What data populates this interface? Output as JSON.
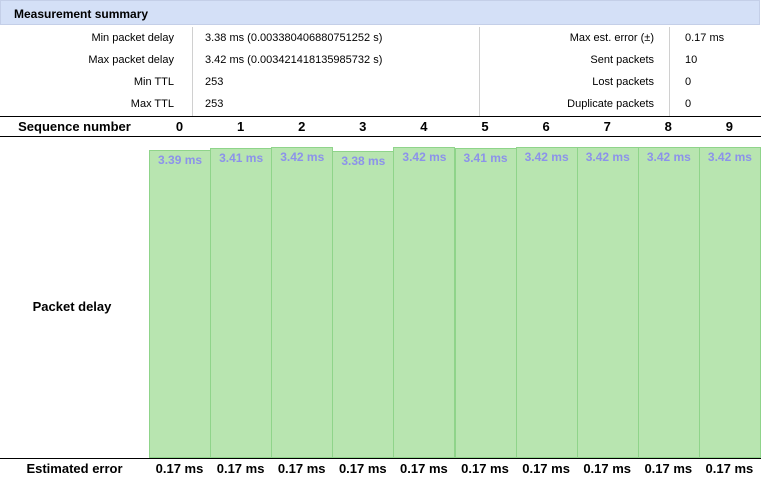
{
  "header": {
    "title": "Measurement summary"
  },
  "summary": {
    "left": [
      {
        "label": "Min packet delay",
        "value": "3.38 ms (0.003380406880751252 s)"
      },
      {
        "label": "Max packet delay",
        "value": "3.42 ms (0.003421418135985732 s)"
      },
      {
        "label": "Min TTL",
        "value": "253"
      },
      {
        "label": "Max TTL",
        "value": "253"
      }
    ],
    "right": [
      {
        "label": "Max est. error (±)",
        "value": "0.17 ms"
      },
      {
        "label": "Sent packets",
        "value": "10"
      },
      {
        "label": "Lost packets",
        "value": "0"
      },
      {
        "label": "Duplicate packets",
        "value": "0"
      }
    ]
  },
  "sequence": {
    "label": "Sequence number",
    "numbers": [
      "0",
      "1",
      "2",
      "3",
      "4",
      "5",
      "6",
      "7",
      "8",
      "9"
    ]
  },
  "chart_data": {
    "type": "bar",
    "title": "",
    "xlabel": "Sequence number",
    "ylabel": "Packet delay",
    "categories": [
      "0",
      "1",
      "2",
      "3",
      "4",
      "5",
      "6",
      "7",
      "8",
      "9"
    ],
    "values": [
      3.39,
      3.41,
      3.42,
      3.38,
      3.42,
      3.41,
      3.42,
      3.42,
      3.42,
      3.42
    ],
    "value_labels": [
      "3.39 ms",
      "3.41 ms",
      "3.42 ms",
      "3.38 ms",
      "3.42 ms",
      "3.41 ms",
      "3.42 ms",
      "3.42 ms",
      "3.42 ms",
      "3.42 ms"
    ],
    "colors": {
      "bar_fill": "#b8e5b0",
      "bar_border": "#8fd48a",
      "label": "#8c92ea"
    }
  },
  "error_row": {
    "label": "Estimated error",
    "values": [
      "0.17 ms",
      "0.17 ms",
      "0.17 ms",
      "0.17 ms",
      "0.17 ms",
      "0.17 ms",
      "0.17 ms",
      "0.17 ms",
      "0.17 ms",
      "0.17 ms"
    ]
  }
}
